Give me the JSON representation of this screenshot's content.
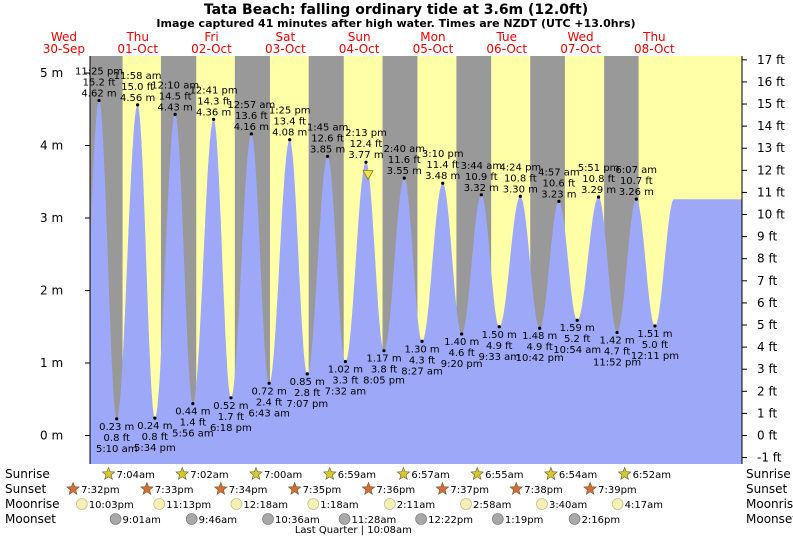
{
  "page": {
    "title": "Tata Beach: falling  ordinary tide at 3.6m (12.0ft)",
    "subtitle": "Image captured 41 minutes after high water. Times are NZDT (UTC +13.0hrs)"
  },
  "colors": {
    "day": "#ffffa8",
    "night": "#999999",
    "tide": "#9da8f8",
    "header_text": "#ee0000",
    "sunrise_star": "#d6c832",
    "sunset_star": "#d86a3c",
    "moonrise": "#f4f0b8",
    "moonset": "#a8a8a8"
  },
  "chart_data": {
    "type": "area",
    "title": "Tata Beach: falling  ordinary tide at 3.6m (12.0ft)",
    "subtitle": "Image captured 41 minutes after high water. Times are NZDT (UTC +13.0hrs)",
    "x_unit": "hours after 00:00 Wed 30-Sep (NZDT)",
    "xlim": [
      0,
      212
    ],
    "ylim": [
      -0.25,
      5.25
    ],
    "y_left_ticks": [
      {
        "value": 0,
        "label": "0 m"
      },
      {
        "value": 1,
        "label": "1 m"
      },
      {
        "value": 2,
        "label": "2 m"
      },
      {
        "value": 3,
        "label": "3 m"
      },
      {
        "value": 4,
        "label": "4 m"
      },
      {
        "value": 5,
        "label": "5 m"
      }
    ],
    "y_right_ticks": [
      "-1 ft",
      "0 ft",
      "1 ft",
      "2 ft",
      "3 ft",
      "4 ft",
      "5 ft",
      "6 ft",
      "7 ft",
      "8 ft",
      "9 ft",
      "10 ft",
      "11 ft",
      "12 ft",
      "13 ft",
      "14 ft",
      "15 ft",
      "16 ft",
      "17 ft"
    ],
    "days": [
      {
        "day": "Wed",
        "date": "30-Sep"
      },
      {
        "day": "Thu",
        "date": "01-Oct"
      },
      {
        "day": "Fri",
        "date": "02-Oct"
      },
      {
        "day": "Sat",
        "date": "03-Oct"
      },
      {
        "day": "Sun",
        "date": "04-Oct"
      },
      {
        "day": "Mon",
        "date": "05-Oct"
      },
      {
        "day": "Tue",
        "date": "06-Oct"
      },
      {
        "day": "Wed",
        "date": "07-Oct"
      },
      {
        "day": "Thu",
        "date": "08-Oct"
      }
    ],
    "tides": [
      {
        "type": "high",
        "time": "11:25 pm",
        "ft": "15.2 ft",
        "m": "4.62 m",
        "h": 23.42,
        "v": 4.62
      },
      {
        "type": "low",
        "time": "5:10 am",
        "ft": "0.8 ft",
        "m": "0.23 m",
        "h": 29.17,
        "v": 0.23
      },
      {
        "type": "high",
        "time": "11:58 am",
        "ft": "15.0 ft",
        "m": "4.56 m",
        "h": 35.97,
        "v": 4.56
      },
      {
        "type": "low",
        "time": "5:34 pm",
        "ft": "0.8 ft",
        "m": "0.24 m",
        "h": 41.57,
        "v": 0.24
      },
      {
        "type": "high",
        "time": "12:10 am",
        "ft": "14.5 ft",
        "m": "4.43 m",
        "h": 48.17,
        "v": 4.43
      },
      {
        "type": "low",
        "time": "5:56 am",
        "ft": "1.4 ft",
        "m": "0.44 m",
        "h": 53.93,
        "v": 0.44
      },
      {
        "type": "high",
        "time": "12:41 pm",
        "ft": "14.3 ft",
        "m": "4.36 m",
        "h": 60.68,
        "v": 4.36
      },
      {
        "type": "low",
        "time": "6:18 pm",
        "ft": "1.7 ft",
        "m": "0.52 m",
        "h": 66.3,
        "v": 0.52
      },
      {
        "type": "high",
        "time": "12:57 am",
        "ft": "13.6 ft",
        "m": "4.16 m",
        "h": 72.95,
        "v": 4.16
      },
      {
        "type": "low",
        "time": "6:43 am",
        "ft": "2.4 ft",
        "m": "0.72 m",
        "h": 78.72,
        "v": 0.72
      },
      {
        "type": "high",
        "time": "1:25 pm",
        "ft": "13.4 ft",
        "m": "4.08 m",
        "h": 85.42,
        "v": 4.08
      },
      {
        "type": "low",
        "time": "7:07 pm",
        "ft": "2.8 ft",
        "m": "0.85 m",
        "h": 91.12,
        "v": 0.85
      },
      {
        "type": "high",
        "time": "1:45 am",
        "ft": "12.6 ft",
        "m": "3.85 m",
        "h": 97.75,
        "v": 3.85
      },
      {
        "type": "low",
        "time": "7:32 am",
        "ft": "3.3 ft",
        "m": "1.02 m",
        "h": 103.53,
        "v": 1.02
      },
      {
        "type": "high",
        "time": "2:13 pm",
        "ft": "12.4 ft",
        "m": "3.77 m",
        "h": 110.22,
        "v": 3.77
      },
      {
        "type": "low",
        "time": "8:05 pm",
        "ft": "3.8 ft",
        "m": "1.17 m",
        "h": 116.08,
        "v": 1.17
      },
      {
        "type": "high",
        "time": "2:40 am",
        "ft": "11.6 ft",
        "m": "3.55 m",
        "h": 122.67,
        "v": 3.55
      },
      {
        "type": "low",
        "time": "8:27 am",
        "ft": "4.3 ft",
        "m": "1.30 m",
        "h": 128.45,
        "v": 1.3
      },
      {
        "type": "high",
        "time": "3:10 pm",
        "ft": "11.4 ft",
        "m": "3.48 m",
        "h": 135.17,
        "v": 3.48
      },
      {
        "type": "low",
        "time": "9:20 pm",
        "ft": "4.6 ft",
        "m": "1.40 m",
        "h": 141.33,
        "v": 1.4
      },
      {
        "type": "high",
        "time": "3:44 am",
        "ft": "10.9 ft",
        "m": "3.32 m",
        "h": 147.73,
        "v": 3.32
      },
      {
        "type": "low",
        "time": "9:33 am",
        "ft": "4.9 ft",
        "m": "1.50 m",
        "h": 153.55,
        "v": 1.5
      },
      {
        "type": "high",
        "time": "4:24 pm",
        "ft": "10.8 ft",
        "m": "3.30 m",
        "h": 160.4,
        "v": 3.3
      },
      {
        "type": "low",
        "time": "10:42 pm",
        "ft": "4.9 ft",
        "m": "1.48 m",
        "h": 166.7,
        "v": 1.48
      },
      {
        "type": "high",
        "time": "4:57 am",
        "ft": "10.6 ft",
        "m": "3.23 m",
        "h": 172.95,
        "v": 3.23
      },
      {
        "type": "low",
        "time": "10:54 am",
        "ft": "5.2 ft",
        "m": "1.59 m",
        "h": 178.9,
        "v": 1.59
      },
      {
        "type": "high",
        "time": "5:51 pm",
        "ft": "10.8 ft",
        "m": "3.29 m",
        "h": 185.85,
        "v": 3.29
      },
      {
        "type": "low",
        "time": "11:52 pm",
        "ft": "4.7 ft",
        "m": "1.42 m",
        "h": 191.87,
        "v": 1.42
      },
      {
        "type": "high",
        "time": "6:07 am",
        "ft": "10.7 ft",
        "m": "3.26 m",
        "h": 198.12,
        "v": 3.26
      },
      {
        "type": "low",
        "time": "12:11 pm",
        "ft": "5.0 ft",
        "m": "1.51 m",
        "h": 204.18,
        "v": 1.51
      }
    ],
    "current": {
      "h": 110.9,
      "v": 3.6
    },
    "sun": [
      {
        "rise": "7:04am",
        "rise_h": 31.07,
        "set": "7:32pm",
        "set_h": 19.53
      },
      {
        "rise": "7:02am",
        "rise_h": 55.03,
        "set": "7:33pm",
        "set_h": 43.55
      },
      {
        "rise": "7:00am",
        "rise_h": 79.0,
        "set": "7:34pm",
        "set_h": 67.57
      },
      {
        "rise": "6:59am",
        "rise_h": 102.98,
        "set": "7:35pm",
        "set_h": 91.58
      },
      {
        "rise": "6:57am",
        "rise_h": 126.95,
        "set": "7:36pm",
        "set_h": 115.6
      },
      {
        "rise": "6:55am",
        "rise_h": 150.92,
        "set": "7:37pm",
        "set_h": 139.62
      },
      {
        "rise": "6:54am",
        "rise_h": 174.9,
        "set": "7:38pm",
        "set_h": 163.63
      },
      {
        "rise": "6:52am",
        "rise_h": 198.87,
        "set": "7:39pm",
        "set_h": 187.65
      }
    ],
    "moonrise": [
      {
        "t": "10:03pm",
        "h": 22.05
      },
      {
        "t": "11:13pm",
        "h": 47.22
      },
      {
        "t": "12:18am",
        "h": 72.3
      },
      {
        "t": "1:18am",
        "h": 97.3
      },
      {
        "t": "2:11am",
        "h": 122.18
      },
      {
        "t": "2:58am",
        "h": 146.97
      },
      {
        "t": "3:40am",
        "h": 171.67
      },
      {
        "t": "4:17am",
        "h": 196.28
      }
    ],
    "moonset": [
      {
        "t": "9:01am",
        "h": 33.02
      },
      {
        "t": "9:46am",
        "h": 57.77
      },
      {
        "t": "10:36am",
        "h": 82.6
      },
      {
        "t": "11:28am",
        "h": 107.47
      },
      {
        "t": "12:22pm",
        "h": 132.37
      },
      {
        "t": "1:19pm",
        "h": 157.32
      },
      {
        "t": "2:16pm",
        "h": 182.27
      }
    ],
    "row_labels": {
      "sunrise": "Sunrise",
      "sunset": "Sunset",
      "moonrise": "Moonrise",
      "moonset": "Moonset"
    },
    "moon_phase": {
      "text": "Last Quarter | 10:08am",
      "h": 106.13
    }
  }
}
